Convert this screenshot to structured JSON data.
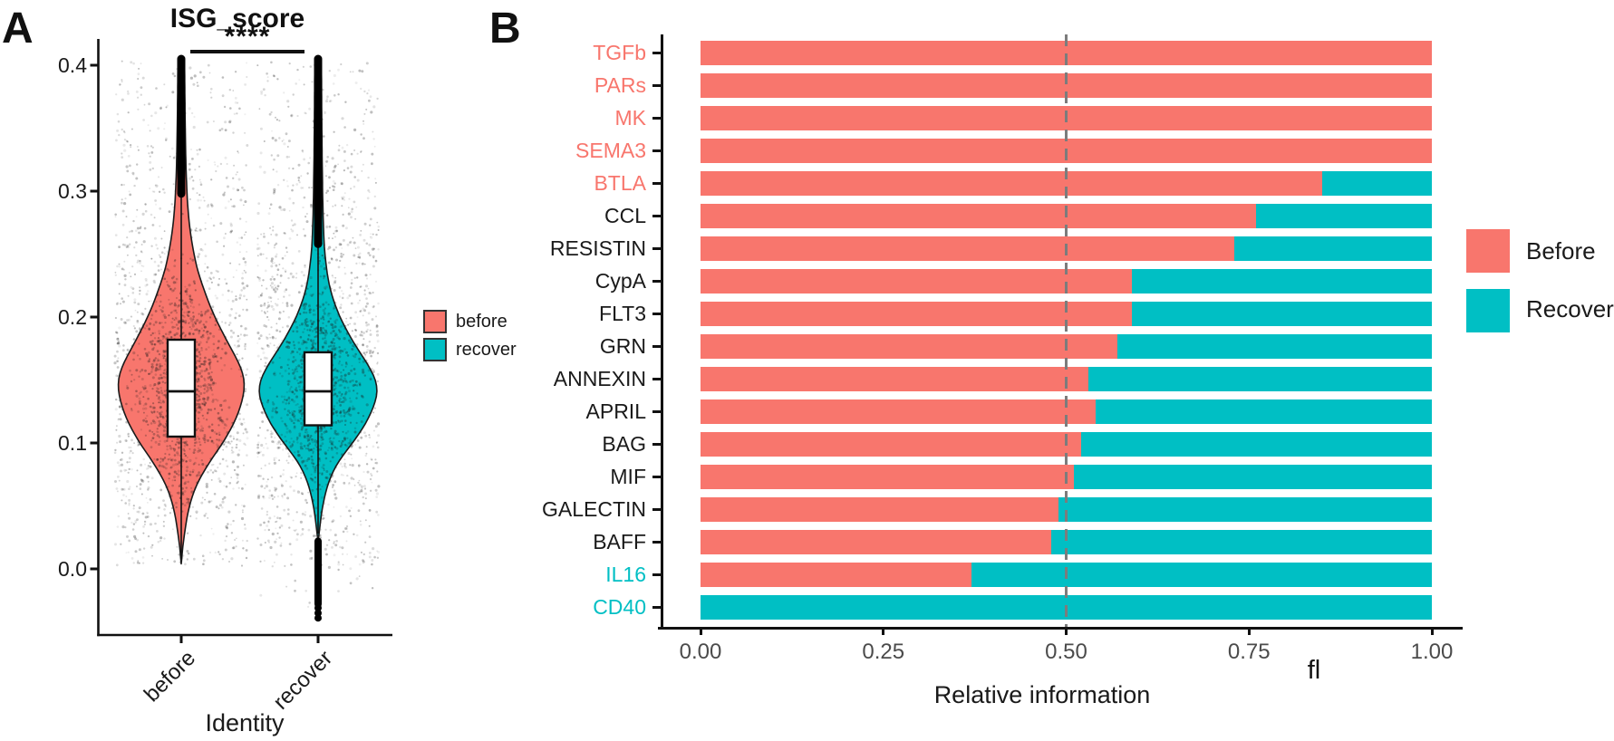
{
  "panels": {
    "a": {
      "label": "A",
      "title": "ISG_score",
      "significance": "****",
      "xlabel": "Identity",
      "legend": [
        {
          "label": "before",
          "color": "#F8766D"
        },
        {
          "label": "recover",
          "color": "#00BFC4"
        }
      ]
    },
    "b": {
      "label": "B",
      "xlabel": "Relative information",
      "extra_label": "fl",
      "legend": [
        {
          "label": "Before",
          "color": "#F8766D"
        },
        {
          "label": "Recover",
          "color": "#00BFC4"
        }
      ]
    }
  },
  "chart_data": [
    {
      "type": "violin",
      "title": "ISG_score",
      "xlabel": "Identity",
      "ylabel": "",
      "categories": [
        "before",
        "recover"
      ],
      "ylim": [
        -0.05,
        0.42
      ],
      "yticks": [
        "0.0",
        "0.1",
        "0.2",
        "0.3",
        "0.4"
      ],
      "ytick_values": [
        0.0,
        0.1,
        0.2,
        0.3,
        0.4
      ],
      "significance": {
        "groups": [
          "before",
          "recover"
        ],
        "label": "****"
      },
      "legend_position": "right-middle",
      "series": [
        {
          "name": "before",
          "color": "#F8766D",
          "box": {
            "q1": 0.105,
            "median": 0.141,
            "q3": 0.182
          },
          "whisker_low": 0.008,
          "tip_low": 0.004,
          "outlier_stack_top": [
            0.298,
            0.405
          ],
          "outlier_stack_bottom": null,
          "outlier_dots": [],
          "jitter_min": 0.002,
          "density_profile": [
            [
              0.004,
              0
            ],
            [
              0.012,
              1
            ],
            [
              0.02,
              2
            ],
            [
              0.03,
              4
            ],
            [
              0.04,
              6
            ],
            [
              0.05,
              9
            ],
            [
              0.06,
              13
            ],
            [
              0.07,
              19
            ],
            [
              0.08,
              27
            ],
            [
              0.09,
              36
            ],
            [
              0.1,
              46
            ],
            [
              0.11,
              54
            ],
            [
              0.12,
              61
            ],
            [
              0.13,
              66
            ],
            [
              0.14,
              69.5
            ],
            [
              0.15,
              70
            ],
            [
              0.16,
              66
            ],
            [
              0.17,
              59
            ],
            [
              0.18,
              51
            ],
            [
              0.19,
              44
            ],
            [
              0.2,
              37
            ],
            [
              0.21,
              31
            ],
            [
              0.22,
              26
            ],
            [
              0.23,
              21
            ],
            [
              0.24,
              17
            ],
            [
              0.25,
              14
            ],
            [
              0.26,
              11.5
            ],
            [
              0.27,
              9.5
            ],
            [
              0.28,
              8
            ],
            [
              0.29,
              7
            ],
            [
              0.3,
              6.2
            ],
            [
              0.32,
              5.2
            ],
            [
              0.34,
              4.6
            ],
            [
              0.36,
              4.2
            ],
            [
              0.38,
              3.9
            ],
            [
              0.405,
              3.6
            ]
          ]
        },
        {
          "name": "recover",
          "color": "#00BFC4",
          "box": {
            "q1": 0.114,
            "median": 0.141,
            "q3": 0.172
          },
          "whisker_low": 0.028,
          "tip_low": 0.022,
          "outlier_stack_top": [
            0.258,
            0.405
          ],
          "outlier_stack_bottom": [
            -0.028,
            0.022
          ],
          "outlier_dots": [
            -0.031,
            -0.035,
            -0.039
          ],
          "jitter_min": -0.036,
          "density_profile": [
            [
              0.022,
              0
            ],
            [
              0.03,
              1.5
            ],
            [
              0.04,
              3
            ],
            [
              0.05,
              5
            ],
            [
              0.06,
              8
            ],
            [
              0.07,
              12
            ],
            [
              0.08,
              18
            ],
            [
              0.09,
              27
            ],
            [
              0.1,
              38
            ],
            [
              0.11,
              48
            ],
            [
              0.12,
              56
            ],
            [
              0.13,
              62
            ],
            [
              0.14,
              66
            ],
            [
              0.15,
              64
            ],
            [
              0.16,
              57
            ],
            [
              0.17,
              48
            ],
            [
              0.18,
              39
            ],
            [
              0.19,
              31
            ],
            [
              0.2,
              24
            ],
            [
              0.21,
              18.5
            ],
            [
              0.22,
              14
            ],
            [
              0.23,
              11
            ],
            [
              0.24,
              9
            ],
            [
              0.25,
              7.5
            ],
            [
              0.26,
              6.5
            ],
            [
              0.28,
              5.5
            ],
            [
              0.3,
              5
            ],
            [
              0.33,
              4.4
            ],
            [
              0.36,
              4
            ],
            [
              0.405,
              3.6
            ]
          ]
        }
      ]
    },
    {
      "type": "bar",
      "orientation": "horizontal",
      "stacked": true,
      "xlabel": "Relative information",
      "xlim": [
        0,
        1
      ],
      "xticks": [
        "0.00",
        "0.25",
        "0.50",
        "0.75",
        "1.00"
      ],
      "xtick_values": [
        0,
        0.25,
        0.5,
        0.75,
        1
      ],
      "reference_line_x": 0.5,
      "legend_position": "right",
      "categories": [
        {
          "label": "TGFb",
          "label_color": "#F8766D"
        },
        {
          "label": "PARs",
          "label_color": "#F8766D"
        },
        {
          "label": "MK",
          "label_color": "#F8766D"
        },
        {
          "label": "SEMA3",
          "label_color": "#F8766D"
        },
        {
          "label": "BTLA",
          "label_color": "#F8766D"
        },
        {
          "label": "CCL",
          "label_color": "#1a1a1a"
        },
        {
          "label": "RESISTIN",
          "label_color": "#1a1a1a"
        },
        {
          "label": "CypA",
          "label_color": "#1a1a1a"
        },
        {
          "label": "FLT3",
          "label_color": "#1a1a1a"
        },
        {
          "label": "GRN",
          "label_color": "#1a1a1a"
        },
        {
          "label": "ANNEXIN",
          "label_color": "#1a1a1a"
        },
        {
          "label": "APRIL",
          "label_color": "#1a1a1a"
        },
        {
          "label": "BAG",
          "label_color": "#1a1a1a"
        },
        {
          "label": "MIF",
          "label_color": "#1a1a1a"
        },
        {
          "label": "GALECTIN",
          "label_color": "#1a1a1a"
        },
        {
          "label": "BAFF",
          "label_color": "#1a1a1a"
        },
        {
          "label": "IL16",
          "label_color": "#00BFC4"
        },
        {
          "label": "CD40",
          "label_color": "#00BFC4"
        }
      ],
      "series": [
        {
          "name": "Before",
          "color": "#F8766D",
          "values": [
            1.0,
            1.0,
            1.0,
            1.0,
            0.85,
            0.76,
            0.73,
            0.59,
            0.59,
            0.57,
            0.53,
            0.54,
            0.52,
            0.51,
            0.49,
            0.48,
            0.37,
            0.0
          ]
        },
        {
          "name": "Recover",
          "color": "#00BFC4",
          "values": [
            0.0,
            0.0,
            0.0,
            0.0,
            0.15,
            0.24,
            0.27,
            0.41,
            0.41,
            0.43,
            0.47,
            0.46,
            0.48,
            0.49,
            0.51,
            0.52,
            0.63,
            1.0
          ]
        }
      ]
    }
  ]
}
